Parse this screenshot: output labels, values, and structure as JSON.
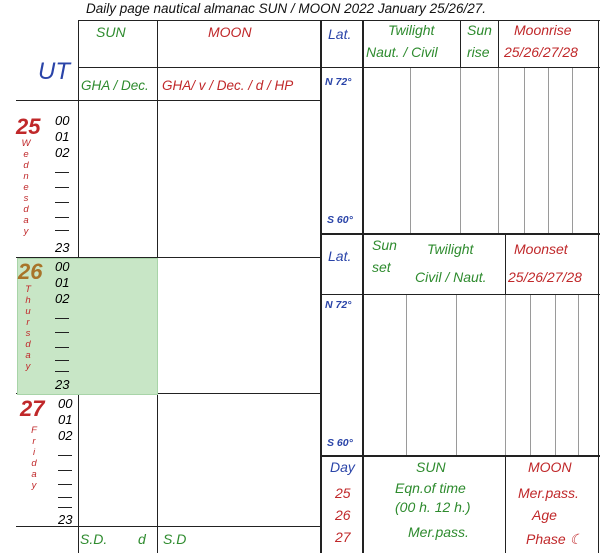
{
  "title": "Daily page nautical almanac SUN / MOON 2022  January 25/26/27.",
  "ut_label": "UT",
  "sun": {
    "heading": "SUN",
    "subheading": "GHA / Dec.",
    "footer_sd": "S.D.",
    "footer_d": "d"
  },
  "moon": {
    "heading": "MOON",
    "subheading": "GHA/ v / Dec. / d / HP",
    "footer_sd": "S.D"
  },
  "lat_top": {
    "heading": "Lat.",
    "north": "N 72°",
    "south": "S 60°"
  },
  "lat_mid": {
    "heading": "Lat.",
    "north": "N 72°",
    "south": "S 60°"
  },
  "twilight_top": {
    "line1": "Twilight",
    "line2": "Naut. / Civil"
  },
  "sunrise": {
    "line1": "Sun",
    "line2": "rise"
  },
  "moonrise": {
    "line1": "Moonrise",
    "line2": "25/26/27/28"
  },
  "sunset": {
    "line1": "Sun",
    "line2": "set"
  },
  "twilight_mid": {
    "line1": "Twilight",
    "line2": "Civil / Naut."
  },
  "moonset": {
    "line1": "Moonset",
    "line2": "25/26/27/28"
  },
  "days": [
    {
      "num": "25",
      "name_letters": [
        "W",
        "e",
        "d",
        "n",
        "e",
        "s",
        "d",
        "a",
        "y"
      ],
      "hours": [
        "00",
        "01",
        "02"
      ],
      "last_hour": "23",
      "color": "#c0282a"
    },
    {
      "num": "26",
      "name_letters": [
        "T",
        "h",
        "u",
        "r",
        "s",
        "d",
        "a",
        "y"
      ],
      "hours": [
        "00",
        "01",
        "02"
      ],
      "last_hour": "23",
      "color": "#a8742a"
    },
    {
      "num": "27",
      "name_letters": [
        "F",
        "r",
        "i",
        "d",
        "a",
        "y"
      ],
      "hours": [
        "00",
        "01",
        "02"
      ],
      "last_hour": "23",
      "color": "#c0282a"
    }
  ],
  "bottom": {
    "day_heading": "Day",
    "day_values": [
      "25",
      "26",
      "27"
    ],
    "sun_heading": "SUN",
    "sun_line1": "Eqn.of time",
    "sun_line2": "(00 h.  12 h.)",
    "sun_line3": "Mer.pass.",
    "moon_heading": "MOON",
    "moon_line1": "Mer.pass.",
    "moon_line2": "Age",
    "moon_line3": "Phase ☾"
  },
  "colors": {
    "sun": "#2e8b2e",
    "moon": "#c0282a",
    "lat": "#2a44a8",
    "shade": "#c8e6c6"
  }
}
